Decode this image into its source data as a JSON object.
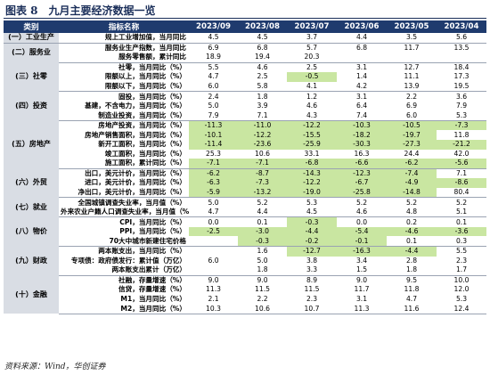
{
  "title": "图表 8　九月主要经济数据一览",
  "headers": [
    "类别",
    "指标名称",
    "2023/09",
    "2023/08",
    "2023/07",
    "2023/06",
    "2023/05",
    "2023/04"
  ],
  "groups": [
    {
      "category": "(一）工业生产",
      "rows": [
        {
          "name": "规上工业增加值，当月同比",
          "values": [
            "4.5",
            "4.5",
            "3.7",
            "4.4",
            "3.5",
            "5.6"
          ],
          "hl": [
            0,
            0,
            0,
            0,
            0,
            0
          ]
        }
      ]
    },
    {
      "category": "(二）服务业",
      "rows": [
        {
          "name": "服务业生产指数，当月同比",
          "values": [
            "6.9",
            "6.8",
            "5.7",
            "6.8",
            "11.7",
            "13.5"
          ],
          "hl": [
            0,
            0,
            0,
            0,
            0,
            0
          ]
        },
        {
          "name": "服务零售额，累计同比",
          "values": [
            "18.9",
            "19.4",
            "20.3",
            "",
            "",
            ""
          ],
          "hl": [
            0,
            0,
            0,
            0,
            0,
            0
          ]
        }
      ]
    },
    {
      "category": "(三）社零",
      "rows": [
        {
          "name": "社零，当月同比（%）",
          "values": [
            "5.5",
            "4.6",
            "2.5",
            "3.1",
            "12.7",
            "18.4"
          ],
          "hl": [
            0,
            0,
            0,
            0,
            0,
            0
          ]
        },
        {
          "name": "限额以上，当月同比（%）",
          "values": [
            "4.7",
            "2.5",
            "-0.5",
            "1.4",
            "11.1",
            "17.3"
          ],
          "hl": [
            0,
            0,
            1,
            0,
            0,
            0
          ]
        },
        {
          "name": "限额以下，当月同比（%）",
          "values": [
            "6.0",
            "5.8",
            "4.1",
            "4.2",
            "13.9",
            "19.5"
          ],
          "hl": [
            0,
            0,
            0,
            0,
            0,
            0
          ]
        }
      ]
    },
    {
      "category": "(四）投资",
      "rows": [
        {
          "name": "固投，当月同比（%）",
          "values": [
            "2.4",
            "1.8",
            "1.2",
            "3.1",
            "2.2",
            "3.6"
          ],
          "hl": [
            0,
            0,
            0,
            0,
            0,
            0
          ]
        },
        {
          "name": "基建，不含电力，当月同比（%）",
          "values": [
            "5.0",
            "3.9",
            "4.6",
            "6.4",
            "6.9",
            "7.9"
          ],
          "hl": [
            0,
            0,
            0,
            0,
            0,
            0
          ]
        },
        {
          "name": "制造业投资，当月同比（%）",
          "values": [
            "7.9",
            "7.1",
            "4.3",
            "7.4",
            "6.0",
            "5.3"
          ],
          "hl": [
            0,
            0,
            0,
            0,
            0,
            0
          ]
        }
      ]
    },
    {
      "category": "(五）房地产",
      "rows": [
        {
          "name": "房地产投资，当月同比（%）",
          "values": [
            "-11.3",
            "-11.0",
            "-12.2",
            "-10.3",
            "-10.5",
            "-7.3"
          ],
          "hl": [
            1,
            1,
            1,
            1,
            1,
            1
          ]
        },
        {
          "name": "房地产销售面积，当月同比（%）",
          "values": [
            "-10.1",
            "-12.2",
            "-15.5",
            "-18.2",
            "-19.7",
            "11.8"
          ],
          "hl": [
            1,
            1,
            1,
            1,
            1,
            0
          ]
        },
        {
          "name": "新开工面积，当月同比（%）",
          "values": [
            "-11.4",
            "-23.6",
            "-25.9",
            "-30.3",
            "-27.3",
            "-21.2"
          ],
          "hl": [
            1,
            1,
            1,
            1,
            1,
            1
          ]
        },
        {
          "name": "竣工面积，当月同比（%）",
          "values": [
            "25.3",
            "10.6",
            "33.1",
            "16.3",
            "24.4",
            "42.0"
          ],
          "hl": [
            0,
            0,
            0,
            0,
            0,
            0
          ]
        },
        {
          "name": "施工面积，累计同比（%）",
          "values": [
            "-7.1",
            "-7.1",
            "-6.8",
            "-6.6",
            "-6.2",
            "-5.6"
          ],
          "hl": [
            1,
            1,
            1,
            1,
            1,
            1
          ]
        }
      ]
    },
    {
      "category": "(六）外贸",
      "rows": [
        {
          "name": "出口，美元计价，当月同比（%）",
          "values": [
            "-6.2",
            "-8.7",
            "-14.3",
            "-12.3",
            "-7.4",
            "7.1"
          ],
          "hl": [
            1,
            1,
            1,
            1,
            1,
            0
          ]
        },
        {
          "name": "进口，美元计价，当月同比（%）",
          "values": [
            "-6.3",
            "-7.3",
            "-12.2",
            "-6.7",
            "-4.9",
            "-8.6"
          ],
          "hl": [
            1,
            1,
            1,
            1,
            1,
            1
          ]
        },
        {
          "name": "净出口，美元计价，当月同比（%）",
          "values": [
            "-5.9",
            "-13.2",
            "-19.0",
            "-25.8",
            "-14.8",
            "80.4"
          ],
          "hl": [
            1,
            1,
            1,
            1,
            1,
            0
          ]
        }
      ]
    },
    {
      "category": "(七）就业",
      "rows": [
        {
          "name": "全国城镇调查失业率，当月值（%）",
          "values": [
            "5.0",
            "5.2",
            "5.3",
            "5.2",
            "5.2",
            "5.2"
          ],
          "hl": [
            0,
            0,
            0,
            0,
            0,
            0
          ]
        },
        {
          "name": "外来农业户籍人口调查失业率，当月值（%）",
          "values": [
            "4.7",
            "4.4",
            "4.5",
            "4.6",
            "4.8",
            "5.1"
          ],
          "hl": [
            0,
            0,
            0,
            0,
            0,
            0
          ]
        }
      ]
    },
    {
      "category": "(八）物价",
      "rows": [
        {
          "name": "CPI，当月同比（%）",
          "values": [
            "0.0",
            "0.1",
            "-0.3",
            "0.0",
            "0.2",
            "0.1"
          ],
          "hl": [
            0,
            0,
            1,
            0,
            0,
            0
          ]
        },
        {
          "name": "PPI，当月同比（%）",
          "values": [
            "-2.5",
            "-3.0",
            "-4.4",
            "-5.4",
            "-4.6",
            "-3.6"
          ],
          "hl": [
            1,
            1,
            1,
            1,
            1,
            1
          ]
        },
        {
          "name": "70大中城市新建住宅价格",
          "values": [
            "",
            "-0.3",
            "-0.2",
            "-0.1",
            "0.1",
            "0.3"
          ],
          "hl": [
            0,
            1,
            1,
            1,
            0,
            0
          ]
        }
      ]
    },
    {
      "category": "(九）财政",
      "rows": [
        {
          "name": "两本账支出，当月同比（%）",
          "values": [
            "",
            "1.6",
            "-12.7",
            "-16.3",
            "-4.4",
            "5.5"
          ],
          "hl": [
            0,
            0,
            1,
            1,
            1,
            0
          ]
        },
        {
          "name": "专项债：政府债发行：累计值（万亿）",
          "values": [
            "6.0",
            "5.0",
            "3.8",
            "3.4",
            "2.8",
            "2.3"
          ],
          "hl": [
            0,
            0,
            0,
            0,
            0,
            0
          ]
        },
        {
          "name": "两本账支出累计（万亿）",
          "values": [
            "",
            "1.8",
            "3.3",
            "1.5",
            "1.8",
            "1.7"
          ],
          "hl": [
            0,
            0,
            0,
            0,
            0,
            0
          ]
        }
      ]
    },
    {
      "category": "(十）金融",
      "rows": [
        {
          "name": "社融，存量增速（%）",
          "values": [
            "9.0",
            "9.0",
            "8.9",
            "9.0",
            "9.5",
            "10.0"
          ],
          "hl": [
            0,
            0,
            0,
            0,
            0,
            0
          ]
        },
        {
          "name": "信贷，存量增速（%）",
          "values": [
            "11.3",
            "11.5",
            "11.5",
            "11.7",
            "11.8",
            "12.0"
          ],
          "hl": [
            0,
            0,
            0,
            0,
            0,
            0
          ]
        },
        {
          "name": "M1，当月同比（%）",
          "values": [
            "2.1",
            "2.2",
            "2.3",
            "3.1",
            "4.7",
            "5.3"
          ],
          "hl": [
            0,
            0,
            0,
            0,
            0,
            0
          ]
        },
        {
          "name": "M2，当月同比（%）",
          "values": [
            "10.3",
            "10.6",
            "10.7",
            "11.3",
            "11.6",
            "12.4"
          ],
          "hl": [
            0,
            0,
            0,
            0,
            0,
            0
          ]
        }
      ]
    }
  ],
  "colors": {
    "header": "#1f3b6e",
    "category": "#d9dde4",
    "highlight": "#c9e6a1",
    "highlight_dark": "#a5d36b"
  },
  "footnote": "资料来源：Wind，华创证券"
}
